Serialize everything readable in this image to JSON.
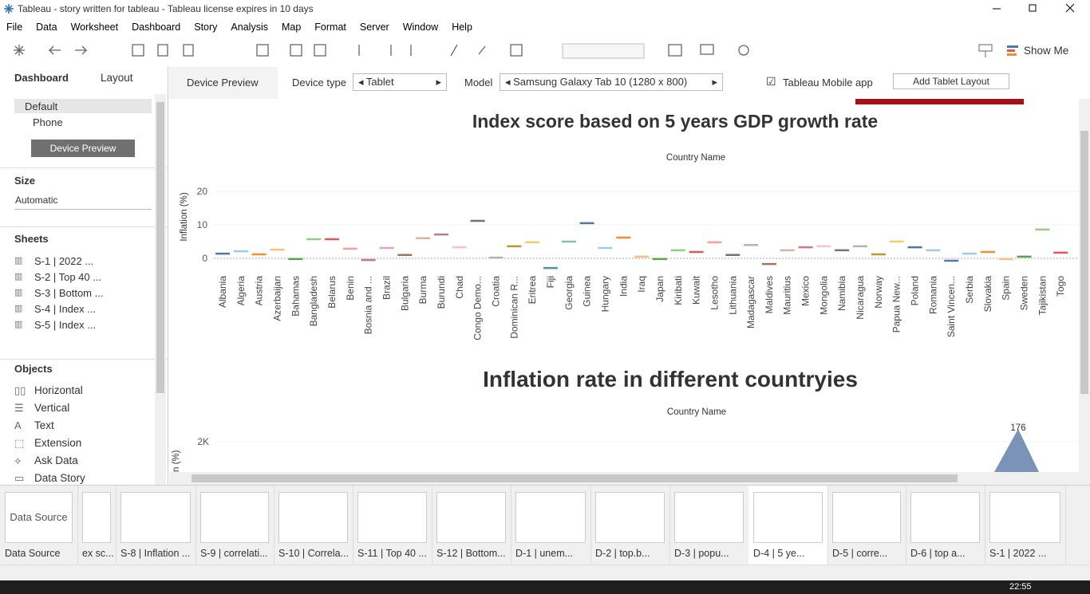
{
  "window": {
    "title": "Tableau - story written for tableau - Tableau license expires in 10 days",
    "time": "22:55"
  },
  "menu": [
    "File",
    "Data",
    "Worksheet",
    "Dashboard",
    "Story",
    "Analysis",
    "Map",
    "Format",
    "Server",
    "Window",
    "Help"
  ],
  "toolbar": {
    "show_me": "Show Me"
  },
  "left_panel": {
    "tabs": [
      "Dashboard",
      "Layout"
    ],
    "devices": [
      "Default",
      "Phone"
    ],
    "device_preview_button": "Device Preview",
    "size_heading": "Size",
    "size_value": "Automatic",
    "sheets_heading": "Sheets",
    "sheets": [
      "S-1 | 2022 ...",
      "S-2 | Top 40 ...",
      "S-3 | Bottom ...",
      "S-4 | Index ...",
      "S-5 | Index ..."
    ],
    "objects_heading": "Objects",
    "objects": [
      "Horizontal",
      "Vertical",
      "Text",
      "Extension",
      "Ask Data",
      "Data Story"
    ]
  },
  "device_bar": {
    "device_preview": "Device Preview",
    "device_type_label": "Device type",
    "device_type": "Tablet",
    "model_label": "Model",
    "model": "Samsung Galaxy Tab 10 (1280 x 800)",
    "mobile_app": "Tableau Mobile app",
    "add_layout": "Add Tablet Layout"
  },
  "dashboard": {
    "chart1": {
      "type": "gantt",
      "title": "Index score based on 5 years GDP growth rate",
      "x_label": "Country Name",
      "y_label": "Inflation (%)",
      "categories": [
        "Albania",
        "Algeria",
        "Austria",
        "Azerbaijan",
        "Bahamas",
        "Bangladesh",
        "Belarus",
        "Benin",
        "Bosnia and ...",
        "Brazil",
        "Bulgaria",
        "Burma",
        "Burundi",
        "Chad",
        "Congo Demo...",
        "Croatia",
        "Dominican R...",
        "Eritrea",
        "Fiji",
        "Georgia",
        "Guinea",
        "Hungary",
        "India",
        "Iraq",
        "Japan",
        "Kiribati",
        "Kuwait",
        "Lesotho",
        "Lithuania",
        "Madagascar",
        "Maldives",
        "Mauritius",
        "Mexico",
        "Mongolia",
        "Namibia",
        "Nicaragua",
        "Norway",
        "Papua New...",
        "Poland",
        "Romania",
        "Saint Vincen...",
        "Serbia",
        "Slovakia",
        "Spain",
        "Sweden",
        "Tajikistan",
        "Togo"
      ],
      "values": [
        1.4,
        2.1,
        1.2,
        2.6,
        -0.2,
        5.7,
        5.7,
        2.9,
        -0.5,
        3.1,
        1.0,
        6.0,
        7.1,
        3.3,
        11.2,
        0.2,
        3.6,
        4.8,
        -2.9,
        5.0,
        10.5,
        3.1,
        6.2,
        0.5,
        -0.2,
        2.4,
        1.9,
        4.8,
        1.0,
        4.0,
        -1.7,
        2.4,
        3.3,
        3.6,
        2.4,
        3.6,
        1.2,
        5.0,
        3.3,
        2.4,
        -0.7,
        1.4,
        1.9,
        -0.2,
        0.5,
        8.6,
        1.7
      ],
      "colors": [
        "#4e79a7",
        "#a0cbe8",
        "#f28e2b",
        "#ffbe7d",
        "#59a14f",
        "#8cd17d",
        "#e15759",
        "#ff9d9a",
        "#b07aa1",
        "#d4a6c8",
        "#9d7660",
        "#d7b5a6",
        "#b07aa1",
        "#fabfd2",
        "#79706e",
        "#bab0ac",
        "#b6992d",
        "#f1ce63",
        "#499894",
        "#86bcb6",
        "#4e79a7",
        "#a0cbe8",
        "#f28e2b",
        "#ffbe7d",
        "#59a14f",
        "#8cd17d",
        "#e15759",
        "#ff9d9a",
        "#79706e",
        "#bab0ac",
        "#9d7660",
        "#d7b5a6",
        "#d37295",
        "#fabfd2",
        "#79706e",
        "#bab0ac",
        "#b6992d",
        "#f1ce63",
        "#4e79a7",
        "#a0cbe8",
        "#4e79a7",
        "#a0cbe8",
        "#f28e2b",
        "#ffbe7d",
        "#59a14f",
        "#8cd17d",
        "#e15759"
      ],
      "ylim": [
        -4,
        28
      ],
      "yticks": [
        0,
        10,
        20
      ]
    },
    "chart2": {
      "type": "area",
      "title": "Inflation rate in different countryies",
      "x_label": "Country Name",
      "y_label": "n (%)",
      "ylim": [
        0,
        2500
      ],
      "yticks": [
        {
          "value": 2000,
          "label": "2K"
        }
      ],
      "peak_label": "176"
    }
  },
  "tabs": [
    "Data Source",
    "ex sc...",
    "S-8 | Inflation ...",
    "S-9 | correlati...",
    "S-10 | Correla...",
    "S-11 | Top 40 ...",
    "S-12 | Bottom...",
    "D-1 | unem...",
    "D-2 | top.b...",
    "D-3 | popu...",
    "D-4 |  5 ye...",
    "D-5 | corre...",
    "D-6 | top a...",
    "S-1 | 2022 ..."
  ],
  "thumbnail_label": "Data Source"
}
